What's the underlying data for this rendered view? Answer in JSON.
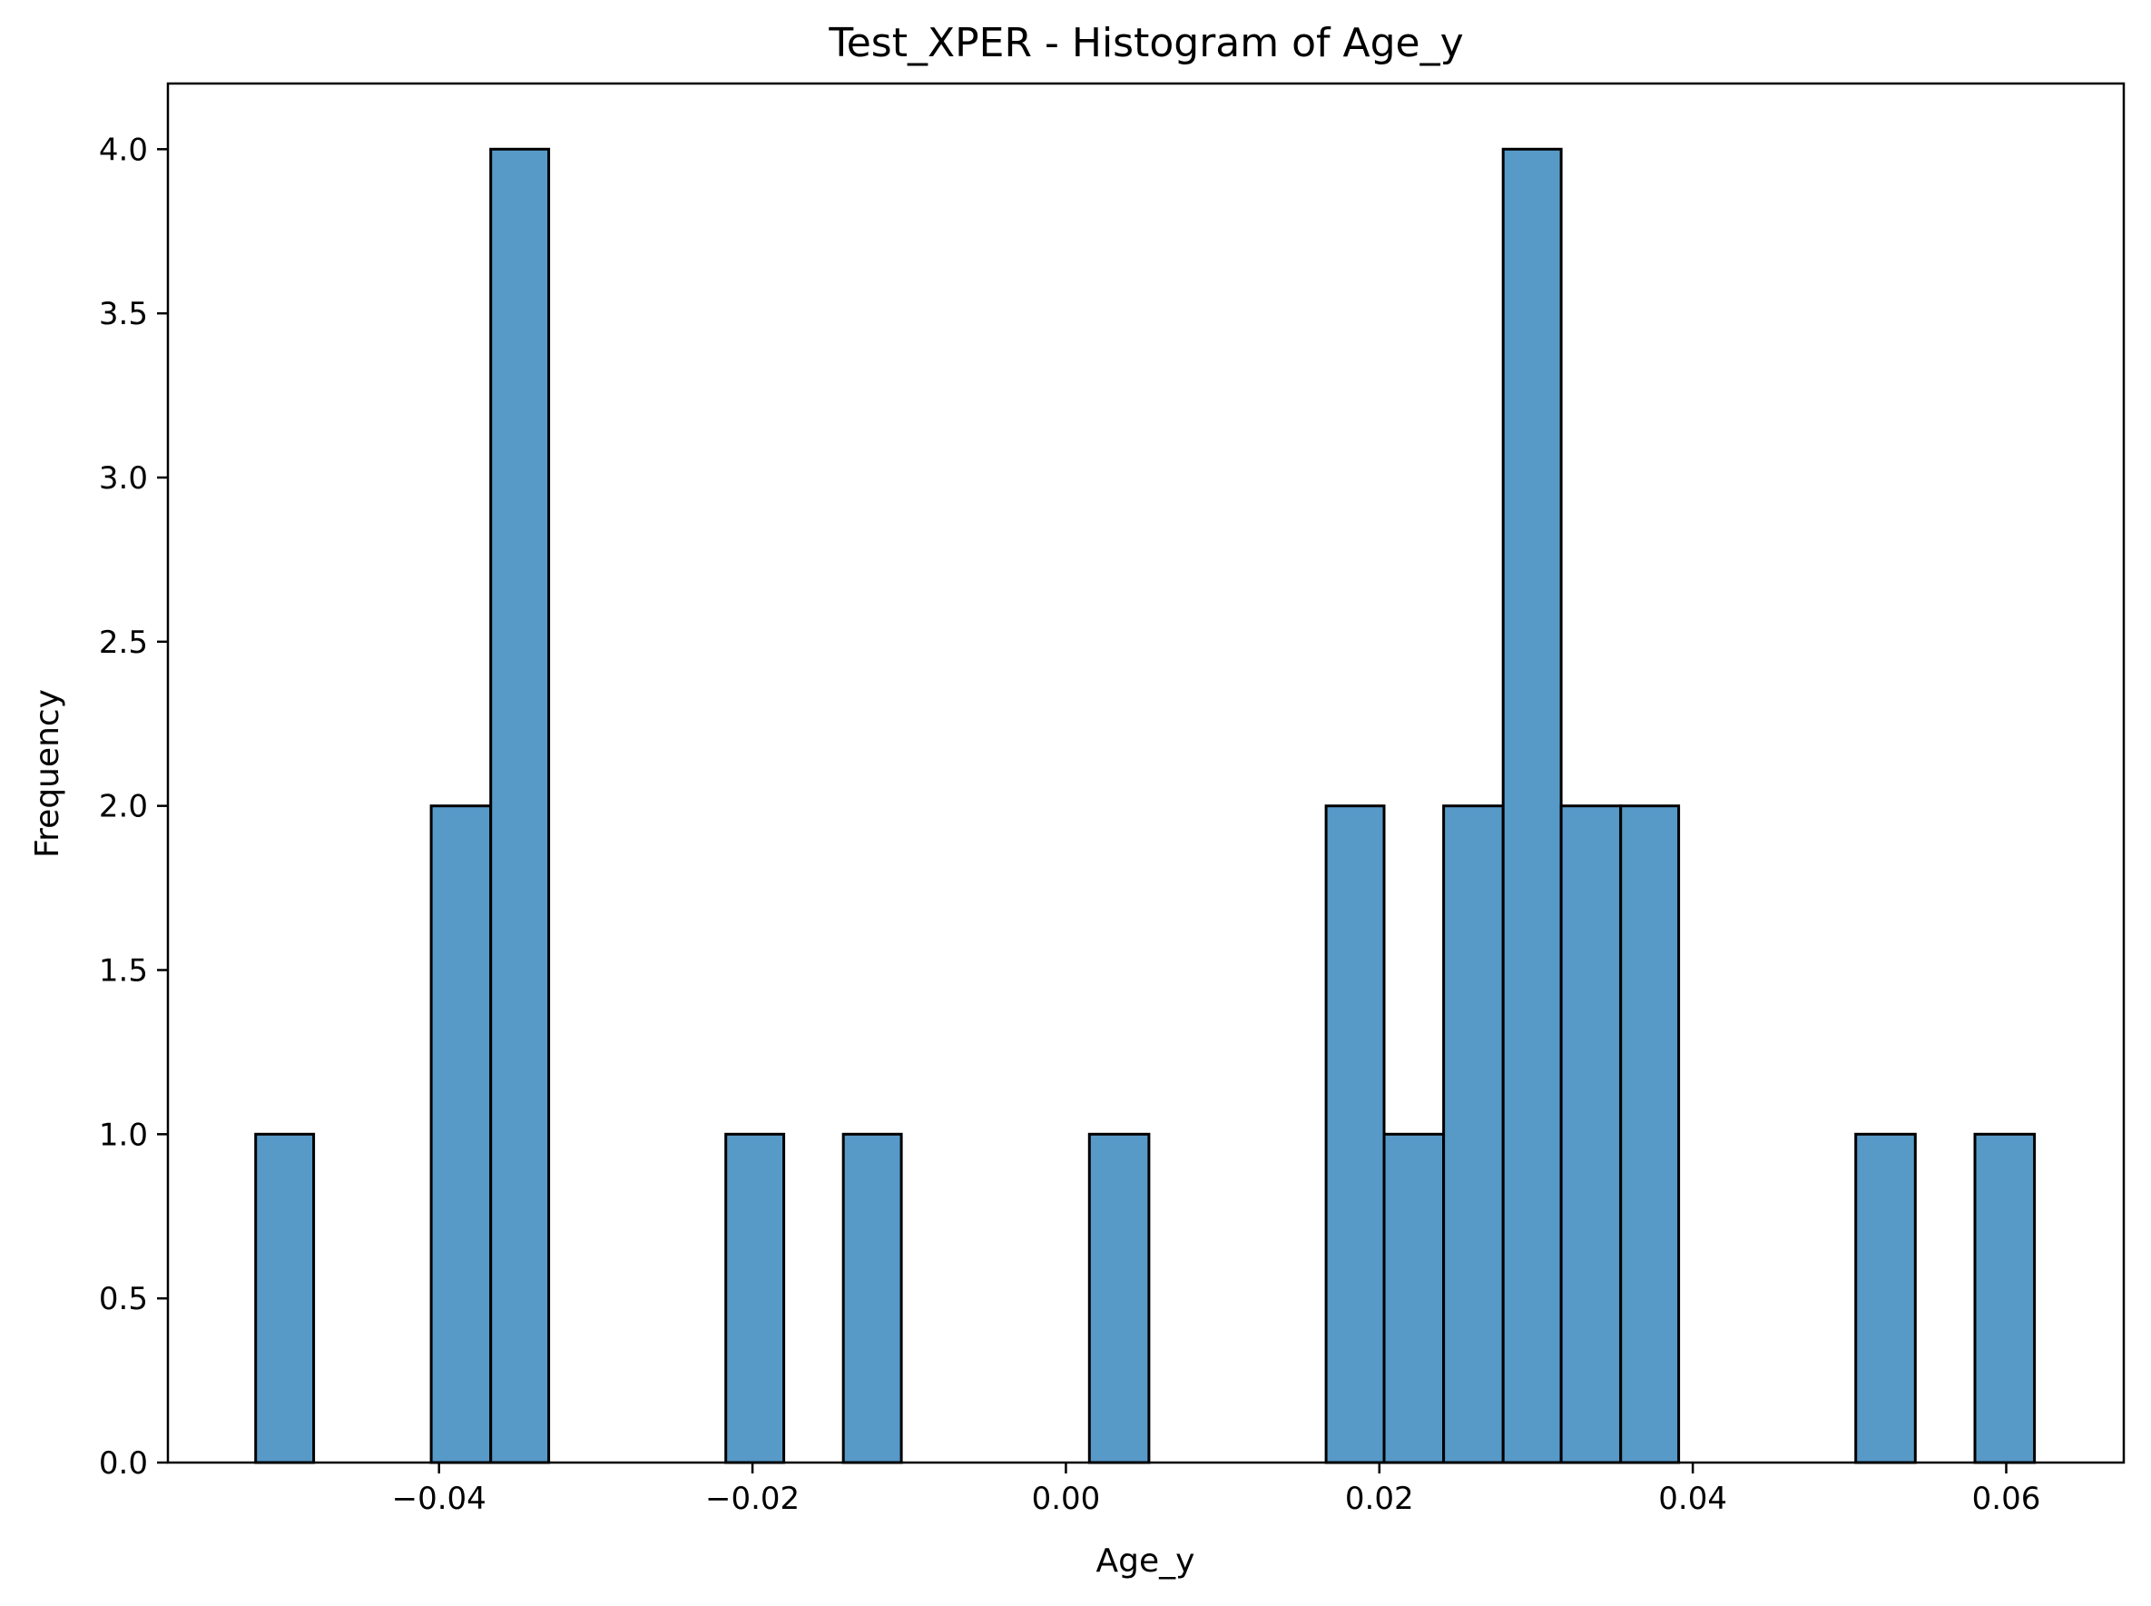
{
  "colors": {
    "bar_fill": "#5799c7",
    "bar_edge": "#000000",
    "axis": "#000000",
    "background": "#ffffff"
  },
  "chart_data": {
    "type": "bar",
    "title": "Test_XPER - Histogram of Age_y",
    "xlabel": "Age_y",
    "ylabel": "Frequency",
    "xlim": [
      -0.0573,
      0.0675
    ],
    "ylim": [
      0,
      4.2
    ],
    "grid": false,
    "x_ticks": [
      -0.04,
      -0.02,
      0.0,
      0.02,
      0.04,
      0.06
    ],
    "x_tick_labels": [
      "−0.04",
      "−0.02",
      "0.00",
      "0.02",
      "0.04",
      "0.06"
    ],
    "y_ticks": [
      0.0,
      0.5,
      1.0,
      1.5,
      2.0,
      2.5,
      3.0,
      3.5,
      4.0
    ],
    "y_tick_labels": [
      "0.0",
      "0.5",
      "1.0",
      "1.5",
      "2.0",
      "2.5",
      "3.0",
      "3.5",
      "4.0"
    ],
    "bins": [
      {
        "x0": -0.0517,
        "x1": -0.048,
        "count": 1
      },
      {
        "x0": -0.048,
        "x1": -0.0442,
        "count": 0
      },
      {
        "x0": -0.0442,
        "x1": -0.0405,
        "count": 0
      },
      {
        "x0": -0.0405,
        "x1": -0.0367,
        "count": 2
      },
      {
        "x0": -0.0367,
        "x1": -0.033,
        "count": 4
      },
      {
        "x0": -0.033,
        "x1": -0.0292,
        "count": 0
      },
      {
        "x0": -0.0292,
        "x1": -0.0255,
        "count": 0
      },
      {
        "x0": -0.0255,
        "x1": -0.0217,
        "count": 0
      },
      {
        "x0": -0.0217,
        "x1": -0.018,
        "count": 1
      },
      {
        "x0": -0.018,
        "x1": -0.0142,
        "count": 0
      },
      {
        "x0": -0.0142,
        "x1": -0.0105,
        "count": 1
      },
      {
        "x0": -0.0105,
        "x1": -0.0067,
        "count": 0
      },
      {
        "x0": -0.0067,
        "x1": -0.003,
        "count": 0
      },
      {
        "x0": -0.003,
        "x1": 0.0008,
        "count": 0
      },
      {
        "x0": 0.0015,
        "x1": 0.0053,
        "count": 1
      },
      {
        "x0": 0.0053,
        "x1": 0.009,
        "count": 0
      },
      {
        "x0": 0.009,
        "x1": 0.0128,
        "count": 0
      },
      {
        "x0": 0.0128,
        "x1": 0.0165,
        "count": 0
      },
      {
        "x0": 0.0166,
        "x1": 0.0203,
        "count": 2
      },
      {
        "x0": 0.0203,
        "x1": 0.0241,
        "count": 1
      },
      {
        "x0": 0.0241,
        "x1": 0.0279,
        "count": 2
      },
      {
        "x0": 0.0279,
        "x1": 0.0316,
        "count": 4
      },
      {
        "x0": 0.0316,
        "x1": 0.0354,
        "count": 2
      },
      {
        "x0": 0.0354,
        "x1": 0.0391,
        "count": 2
      },
      {
        "x0": 0.0391,
        "x1": 0.0429,
        "count": 0
      },
      {
        "x0": 0.0429,
        "x1": 0.0467,
        "count": 0
      },
      {
        "x0": 0.0467,
        "x1": 0.0504,
        "count": 0
      },
      {
        "x0": 0.0504,
        "x1": 0.0542,
        "count": 1
      },
      {
        "x0": 0.0542,
        "x1": 0.0579,
        "count": 0
      },
      {
        "x0": 0.058,
        "x1": 0.0618,
        "count": 1
      }
    ]
  }
}
